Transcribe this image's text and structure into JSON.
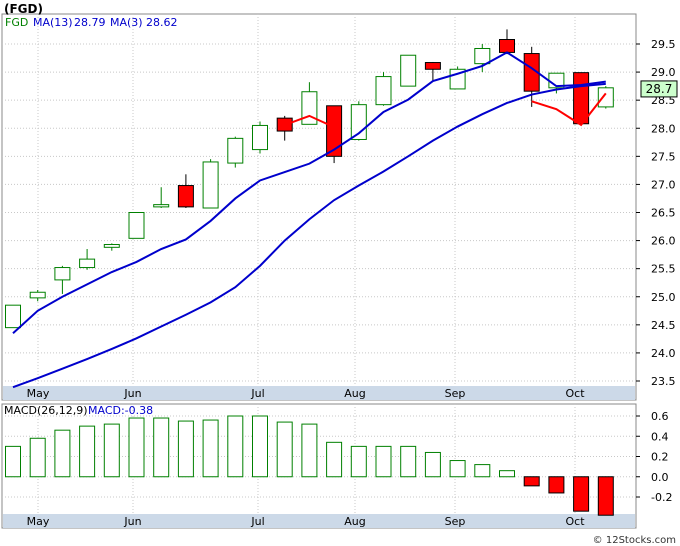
{
  "title": "(FGD)",
  "watermark": "© 12Stocks.com",
  "colors": {
    "up": "#008000",
    "down": "#ff0000",
    "ma": "#0000cc",
    "ma3_recent": "#ff0000",
    "grid": "#c8c8c8",
    "band": "#ccd9e8",
    "last_price_bg": "#ccffcc"
  },
  "legend": {
    "ticker": "FGD",
    "ma13_label": "MA(13)",
    "ma13_value": "28.79",
    "ma3_label": "MA(3)",
    "ma3_value": "28.62"
  },
  "last_price": "28.7",
  "macd_legend": {
    "label": "MACD(26,12,9)",
    "value_label": "MACD:-0.38"
  },
  "chart_data": [
    {
      "type": "candlestick",
      "title": "(FGD)",
      "x_tick_labels": [
        "May",
        "Jun",
        "Jul",
        "Aug",
        "Sep",
        "Oct"
      ],
      "y_tick_labels": [
        "23.5",
        "24.0",
        "24.5",
        "25.0",
        "25.5",
        "26.0",
        "26.5",
        "27.0",
        "27.5",
        "28.0",
        "28.5",
        "29.0",
        "29.5"
      ],
      "ylim": [
        23.4,
        30.0
      ],
      "grid": true,
      "candles": [
        {
          "i": 0,
          "open": 24.45,
          "close": 24.85,
          "high": 24.85,
          "low": 24.45
        },
        {
          "i": 1,
          "open": 24.98,
          "close": 25.08,
          "high": 25.12,
          "low": 24.92
        },
        {
          "i": 2,
          "open": 25.3,
          "close": 25.52,
          "high": 25.55,
          "low": 25.05
        },
        {
          "i": 3,
          "open": 25.52,
          "close": 25.67,
          "high": 25.85,
          "low": 25.48
        },
        {
          "i": 4,
          "open": 25.88,
          "close": 25.93,
          "high": 25.95,
          "low": 25.82
        },
        {
          "i": 5,
          "open": 26.04,
          "close": 26.5,
          "high": 26.5,
          "low": 26.04
        },
        {
          "i": 6,
          "open": 26.6,
          "close": 26.64,
          "high": 26.95,
          "low": 26.58
        },
        {
          "i": 7,
          "open": 26.98,
          "close": 26.6,
          "high": 27.18,
          "low": 26.58
        },
        {
          "i": 8,
          "open": 26.58,
          "close": 27.4,
          "high": 27.45,
          "low": 26.58
        },
        {
          "i": 9,
          "open": 27.38,
          "close": 27.82,
          "high": 27.85,
          "low": 27.3
        },
        {
          "i": 10,
          "open": 27.62,
          "close": 28.05,
          "high": 28.12,
          "low": 27.55
        },
        {
          "i": 11,
          "open": 28.18,
          "close": 27.95,
          "high": 28.22,
          "low": 27.78
        },
        {
          "i": 12,
          "open": 28.07,
          "close": 28.65,
          "high": 28.82,
          "low": 28.07
        },
        {
          "i": 13,
          "open": 28.4,
          "close": 27.5,
          "high": 28.4,
          "low": 27.38
        },
        {
          "i": 14,
          "open": 27.8,
          "close": 28.42,
          "high": 28.48,
          "low": 27.78
        },
        {
          "i": 15,
          "open": 28.42,
          "close": 28.92,
          "high": 29.0,
          "low": 28.4
        },
        {
          "i": 16,
          "open": 28.75,
          "close": 29.3,
          "high": 29.3,
          "low": 28.75
        },
        {
          "i": 17,
          "open": 29.17,
          "close": 29.05,
          "high": 29.18,
          "low": 28.85
        },
        {
          "i": 18,
          "open": 28.7,
          "close": 29.05,
          "high": 29.1,
          "low": 28.7
        },
        {
          "i": 19,
          "open": 29.15,
          "close": 29.42,
          "high": 29.5,
          "low": 29.0
        },
        {
          "i": 20,
          "open": 29.58,
          "close": 29.35,
          "high": 29.76,
          "low": 29.32
        },
        {
          "i": 21,
          "open": 29.33,
          "close": 28.66,
          "high": 29.45,
          "low": 28.38
        },
        {
          "i": 22,
          "open": 28.72,
          "close": 28.98,
          "high": 28.98,
          "low": 28.62
        },
        {
          "i": 23,
          "open": 28.99,
          "close": 28.08,
          "high": 28.99,
          "low": 28.08
        },
        {
          "i": 24,
          "open": 28.38,
          "close": 28.72,
          "high": 28.75,
          "low": 28.35
        }
      ],
      "ma13": [
        24.35,
        24.75,
        25.0,
        25.22,
        25.44,
        25.62,
        25.85,
        26.02,
        26.35,
        26.75,
        27.07,
        27.22,
        27.37,
        27.62,
        27.91,
        28.29,
        28.51,
        28.84,
        28.97,
        29.11,
        29.35,
        29.07,
        28.75,
        28.77,
        28.83
      ],
      "ma13_left": [
        23.39,
        23.55,
        23.72,
        23.89,
        24.07,
        24.26,
        24.47,
        24.68,
        24.9,
        25.17,
        25.55,
        26.0,
        26.38,
        26.72,
        26.98,
        27.23,
        27.5,
        27.78,
        28.03,
        28.25,
        28.45,
        28.6,
        28.69,
        28.75,
        28.79
      ],
      "ma3": [
        28.48,
        28.34,
        28.06,
        28.62
      ],
      "ma3_start_index": 21
    },
    {
      "type": "bar",
      "title": "MACD(26,12,9)",
      "x_tick_labels": [
        "May",
        "Jun",
        "Jul",
        "Aug",
        "Sep",
        "Oct"
      ],
      "y_tick_labels": [
        "0.6",
        "0.4",
        "0.2",
        "0.0",
        "-0.2"
      ],
      "ylim": [
        -0.38,
        0.66
      ],
      "values": [
        0.3,
        0.38,
        0.46,
        0.5,
        0.52,
        0.58,
        0.58,
        0.55,
        0.56,
        0.6,
        0.6,
        0.54,
        0.52,
        0.34,
        0.3,
        0.3,
        0.3,
        0.24,
        0.16,
        0.12,
        0.06,
        -0.09,
        -0.16,
        -0.34,
        -0.38
      ]
    }
  ]
}
